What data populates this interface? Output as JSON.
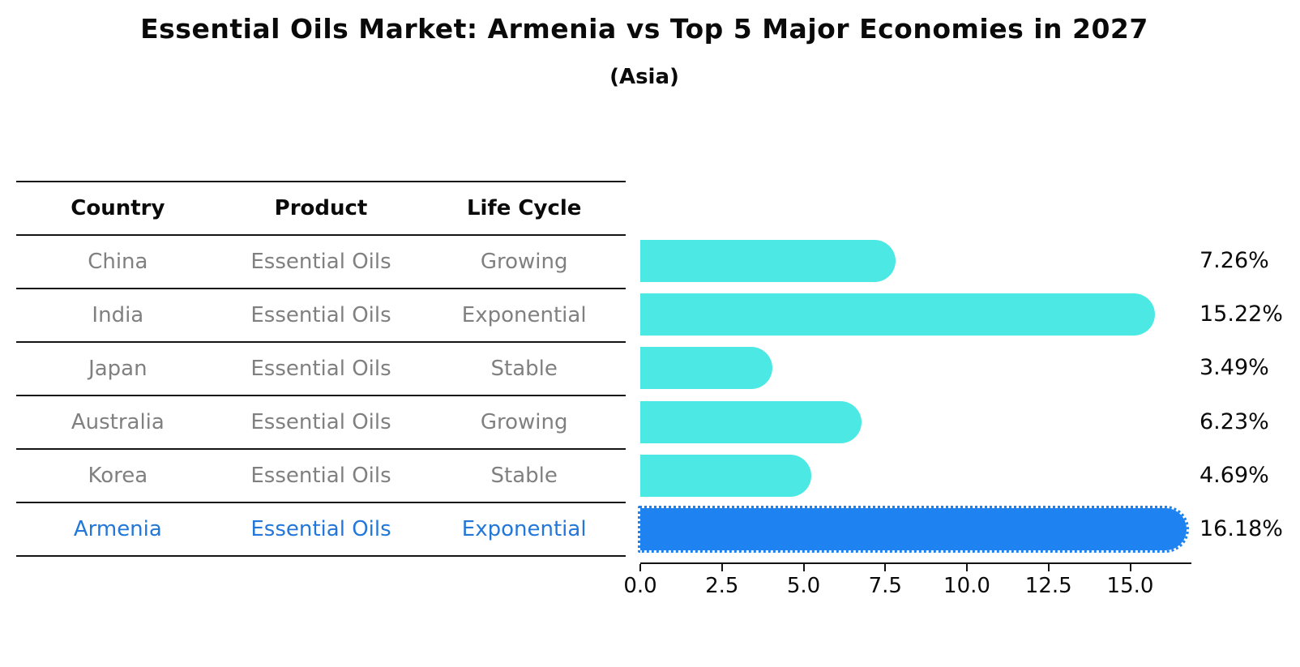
{
  "title": "Essential Oils Market: Armenia vs Top 5 Major Economies in 2027",
  "subtitle": "(Asia)",
  "table": {
    "headers": [
      "Country",
      "Product",
      "Life Cycle"
    ],
    "rows": [
      {
        "country": "China",
        "product": "Essential Oils",
        "life_cycle": "Growing",
        "highlight": false
      },
      {
        "country": "India",
        "product": "Essential Oils",
        "life_cycle": "Exponential",
        "highlight": false
      },
      {
        "country": "Japan",
        "product": "Essential Oils",
        "life_cycle": "Stable",
        "highlight": false
      },
      {
        "country": "Australia",
        "product": "Essential Oils",
        "life_cycle": "Growing",
        "highlight": false
      },
      {
        "country": "Korea",
        "product": "Essential Oils",
        "life_cycle": "Stable",
        "highlight": false
      },
      {
        "country": "Armenia",
        "product": "Essential Oils",
        "life_cycle": "Exponential",
        "highlight": true
      }
    ]
  },
  "chart_data": {
    "type": "bar",
    "orientation": "horizontal",
    "title": "Essential Oils Market: Armenia vs Top 5 Major Economies in 2027",
    "subtitle": "(Asia)",
    "categories": [
      "China",
      "India",
      "Japan",
      "Australia",
      "Korea",
      "Armenia"
    ],
    "values": [
      7.26,
      15.22,
      3.49,
      6.23,
      4.69,
      16.18
    ],
    "value_labels": [
      "7.26%",
      "15.22%",
      "3.49%",
      "6.23%",
      "4.69%",
      "16.18%"
    ],
    "highlight_index": 5,
    "x_ticks": [
      0,
      2.5,
      5,
      7.5,
      10,
      12.5,
      15
    ],
    "x_tick_labels": [
      "0.0",
      "2.5",
      "5.0",
      "7.5",
      "10.0",
      "12.5",
      "15.0"
    ],
    "xlim": [
      0,
      16.85
    ],
    "grid": false,
    "legend": false,
    "xlabel": "",
    "ylabel": ""
  },
  "colors": {
    "bar_default": "#4be8e4",
    "bar_highlight": "#1e82f0",
    "highlight_text": "#2277d8",
    "table_text": "#808080",
    "axis": "#141414"
  }
}
